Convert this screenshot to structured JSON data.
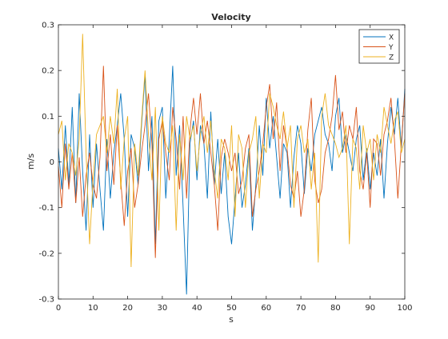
{
  "chart_data": {
    "type": "line",
    "title": "Velocity",
    "xlabel": "s",
    "ylabel": "m/s",
    "xlim": [
      0,
      100
    ],
    "ylim": [
      -0.3,
      0.3
    ],
    "xticks": [
      0,
      10,
      20,
      30,
      40,
      50,
      60,
      70,
      80,
      90,
      100
    ],
    "yticks": [
      -0.3,
      -0.2,
      -0.1,
      0,
      0.1,
      0.2,
      0.3
    ],
    "ytick_labels": [
      "-0.3",
      "-0.2",
      "-0.1",
      "0",
      "0.1",
      "0.2",
      "0.3"
    ],
    "grid": false,
    "legend_position": "top-right",
    "series": [
      {
        "name": "X",
        "color": "#0072BD",
        "x": [
          0,
          1,
          2,
          3,
          4,
          5,
          6,
          7,
          8,
          9,
          10,
          11,
          12,
          13,
          14,
          15,
          16,
          17,
          18,
          19,
          20,
          21,
          22,
          23,
          24,
          25,
          26,
          27,
          28,
          29,
          30,
          31,
          32,
          33,
          34,
          35,
          36,
          37,
          38,
          39,
          40,
          41,
          42,
          43,
          44,
          45,
          46,
          47,
          48,
          49,
          50,
          51,
          52,
          53,
          54,
          55,
          56,
          57,
          58,
          59,
          60,
          61,
          62,
          63,
          64,
          65,
          66,
          67,
          68,
          69,
          70,
          71,
          72,
          73,
          74,
          75,
          76,
          77,
          78,
          79,
          80,
          81,
          82,
          83,
          84,
          85,
          86,
          87,
          88,
          89,
          90,
          91,
          92,
          93,
          94,
          95,
          96,
          97,
          98,
          99,
          100
        ],
        "y": [
          0.03,
          -0.06,
          0.08,
          -0.05,
          0.12,
          -0.09,
          0.15,
          -0.02,
          -0.15,
          0.06,
          -0.1,
          0.04,
          -0.06,
          -0.15,
          0.05,
          -0.08,
          0.02,
          0.08,
          0.15,
          0.05,
          -0.12,
          0.06,
          0.03,
          -0.05,
          0.08,
          0.19,
          -0.02,
          0.1,
          -0.18,
          0.09,
          0.12,
          -0.08,
          0.05,
          0.21,
          -0.03,
          0.08,
          -0.1,
          -0.29,
          0.04,
          0.09,
          -0.04,
          0.08,
          0.04,
          -0.08,
          0.11,
          -0.05,
          0.05,
          -0.07,
          0.02,
          -0.12,
          -0.18,
          -0.08,
          0.02,
          -0.1,
          -0.05,
          0.03,
          -0.15,
          -0.05,
          0.08,
          -0.03,
          0.14,
          0.03,
          0.1,
          0.01,
          -0.08,
          0.04,
          0.02,
          -0.1,
          0.01,
          0.08,
          0.04,
          -0.07,
          0.03,
          -0.02,
          0.06,
          0.09,
          0.12,
          0.06,
          0.04,
          -0.02,
          0.1,
          0.14,
          0.02,
          0.06,
          0.02,
          -0.02,
          0.05,
          0.08,
          -0.04,
          0.03,
          -0.06,
          0.02,
          -0.03,
          0.05,
          -0.08,
          0.04,
          0.12,
          0.06,
          0.14,
          0.03,
          0.16
        ]
      },
      {
        "name": "Y",
        "color": "#D95319",
        "x": [
          0,
          1,
          2,
          3,
          4,
          5,
          6,
          7,
          8,
          9,
          10,
          11,
          12,
          13,
          14,
          15,
          16,
          17,
          18,
          19,
          20,
          21,
          22,
          23,
          24,
          25,
          26,
          27,
          28,
          29,
          30,
          31,
          32,
          33,
          34,
          35,
          36,
          37,
          38,
          39,
          40,
          41,
          42,
          43,
          44,
          45,
          46,
          47,
          48,
          49,
          50,
          51,
          52,
          53,
          54,
          55,
          56,
          57,
          58,
          59,
          60,
          61,
          62,
          63,
          64,
          65,
          66,
          67,
          68,
          69,
          70,
          71,
          72,
          73,
          74,
          75,
          76,
          77,
          78,
          79,
          80,
          81,
          82,
          83,
          84,
          85,
          86,
          87,
          88,
          89,
          90,
          91,
          92,
          93,
          94,
          95,
          96,
          97,
          98,
          99,
          100
        ],
        "y": [
          -0.01,
          -0.1,
          0.04,
          -0.06,
          0.02,
          -0.09,
          0.01,
          -0.12,
          -0.03,
          0.02,
          -0.05,
          -0.08,
          0.01,
          0.21,
          -0.02,
          0.06,
          -0.05,
          0.08,
          -0.04,
          -0.14,
          -0.02,
          0.03,
          -0.1,
          -0.05,
          0.02,
          0.08,
          0.15,
          0.04,
          -0.21,
          0.05,
          0.09,
          0.02,
          -0.04,
          0.12,
          0.05,
          -0.06,
          0.1,
          -0.08,
          0.07,
          0.14,
          0.06,
          0.15,
          0.04,
          0.09,
          0.02,
          -0.05,
          -0.15,
          0.01,
          0.05,
          0.02,
          -0.02,
          0.02,
          -0.07,
          -0.04,
          0.03,
          0.06,
          -0.12,
          -0.06,
          -0.02,
          0.04,
          0.12,
          0.17,
          0.05,
          0.13,
          -0.02,
          0.08,
          0.03,
          -0.05,
          -0.08,
          -0.02,
          -0.12,
          -0.06,
          0.07,
          0.14,
          -0.04,
          -0.09,
          -0.06,
          0.02,
          0.05,
          0.1,
          0.19,
          0.07,
          0.11,
          0.02,
          0.08,
          0.05,
          0.12,
          -0.02,
          -0.06,
          0.02,
          -0.1,
          0.05,
          0.04,
          -0.03,
          0.06,
          0.09,
          0.14,
          0.05,
          -0.08,
          0.04,
          0.15
        ]
      },
      {
        "name": "Z",
        "color": "#EDB120",
        "x": [
          0,
          1,
          2,
          3,
          4,
          5,
          6,
          7,
          8,
          9,
          10,
          11,
          12,
          13,
          14,
          15,
          16,
          17,
          18,
          19,
          20,
          21,
          22,
          23,
          24,
          25,
          26,
          27,
          28,
          29,
          30,
          31,
          32,
          33,
          34,
          35,
          36,
          37,
          38,
          39,
          40,
          41,
          42,
          43,
          44,
          45,
          46,
          47,
          48,
          49,
          50,
          51,
          52,
          53,
          54,
          55,
          56,
          57,
          58,
          59,
          60,
          61,
          62,
          63,
          64,
          65,
          66,
          67,
          68,
          69,
          70,
          71,
          72,
          73,
          74,
          75,
          76,
          77,
          78,
          79,
          80,
          81,
          82,
          83,
          84,
          85,
          86,
          87,
          88,
          89,
          90,
          91,
          92,
          93,
          94,
          95,
          96,
          97,
          98,
          99,
          100
        ],
        "y": [
          0.06,
          0.09,
          -0.04,
          0.04,
          0.02,
          -0.03,
          0.05,
          0.28,
          0.02,
          -0.18,
          -0.04,
          0.06,
          0.08,
          0.1,
          0.02,
          0.1,
          0.04,
          0.16,
          -0.06,
          0.05,
          0.1,
          -0.23,
          0.04,
          -0.03,
          0.09,
          0.2,
          0.06,
          -0.04,
          0.12,
          -0.15,
          0.1,
          0.04,
          0.02,
          0.08,
          -0.15,
          0.06,
          -0.04,
          0.1,
          0.05,
          0.08,
          -0.02,
          0.06,
          0.1,
          0.02,
          0.09,
          -0.02,
          -0.08,
          0.05,
          0.03,
          -0.04,
          0.08,
          -0.12,
          0.06,
          0.03,
          -0.1,
          0.02,
          0.05,
          0.1,
          -0.08,
          0.04,
          0.02,
          0.15,
          0.12,
          0.08,
          0.05,
          0.11,
          0.03,
          0.08,
          -0.1,
          0.05,
          0.08,
          0.02,
          0.05,
          -0.06,
          0.02,
          -0.22,
          0.1,
          0.15,
          0.08,
          0.06,
          0.04,
          0.01,
          0.03,
          0.08,
          -0.18,
          0.05,
          0.03,
          -0.06,
          0.08,
          0.02,
          0.05,
          -0.04,
          0.06,
          0.02,
          0.12,
          0.08,
          0.04,
          0.09,
          0.11,
          0.02,
          0.05
        ]
      }
    ]
  }
}
